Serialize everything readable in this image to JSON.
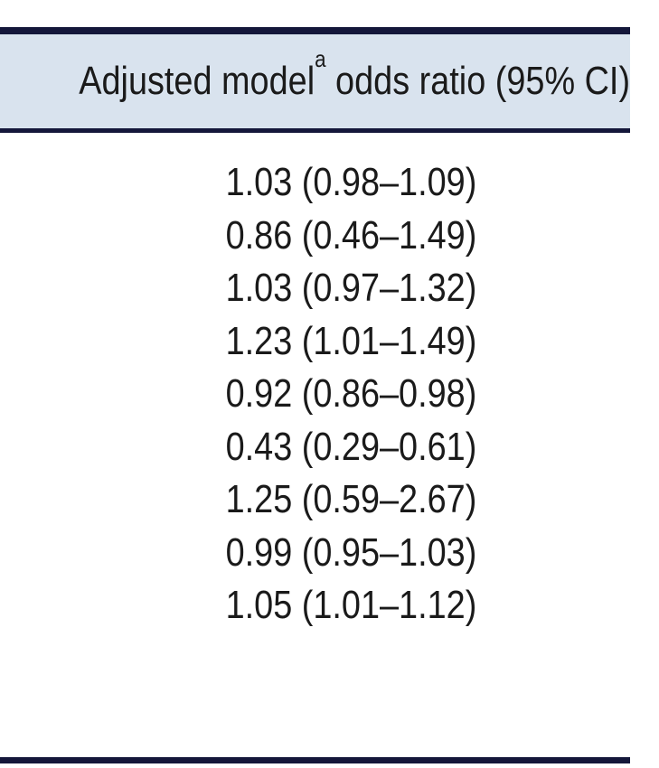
{
  "table": {
    "header": {
      "text_before": "Adjusted model",
      "superscript": "a",
      "text_after": " odds ratio (95% CI)"
    },
    "rows": [
      "1.03 (0.98–1.09)",
      "0.86 (0.46–1.49)",
      "1.03 (0.97–1.32)",
      "1.23 (1.01–1.49)",
      "0.92 (0.86–0.98)",
      "0.43 (0.29–0.61)",
      "1.25 (0.59–2.67)",
      "0.99 (0.95–1.03)",
      "1.05 (1.01–1.12)"
    ]
  },
  "colors": {
    "rule": "#14173a",
    "header_background": "#d9e3ee",
    "text": "#1a1a1a"
  }
}
